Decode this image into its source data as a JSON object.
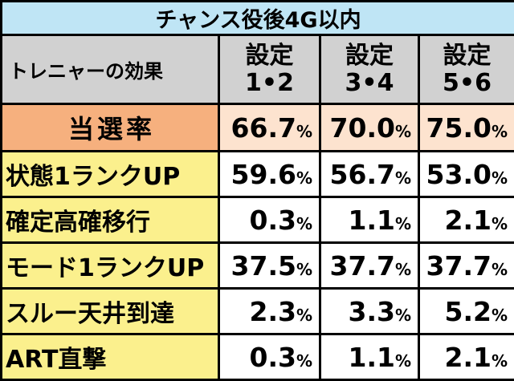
{
  "title": "チャンス役後4G以内",
  "header": {
    "label": "トレニャーの効果",
    "settings": [
      {
        "line1": "設定",
        "line2": "1•2"
      },
      {
        "line1": "設定",
        "line2": "3•4"
      },
      {
        "line1": "設定",
        "line2": "5•6"
      }
    ]
  },
  "rows": [
    {
      "label": "当選率",
      "values": [
        "66.7",
        "70.0",
        "75.0"
      ]
    },
    {
      "label": "状態1ランクUP",
      "values": [
        "59.6",
        "56.7",
        "53.0"
      ]
    },
    {
      "label": "確定高確移行",
      "values": [
        "0.3",
        "1.1",
        "2.1"
      ]
    },
    {
      "label": "モード1ランクUP",
      "values": [
        "37.5",
        "37.7",
        "37.7"
      ]
    },
    {
      "label": "スルー天井到達",
      "values": [
        "2.3",
        "3.3",
        "5.2"
      ]
    },
    {
      "label": "ART直撃",
      "values": [
        "0.3",
        "1.1",
        "2.1"
      ]
    }
  ],
  "percent_sign": "%",
  "colors": {
    "title_bg": "#bfe5f5",
    "header_bg": "#d1d1d1",
    "highlight_label_bg": "#f6b07e",
    "highlight_value_bg": "#fde3cf",
    "label_bg": "#fbf08d"
  }
}
